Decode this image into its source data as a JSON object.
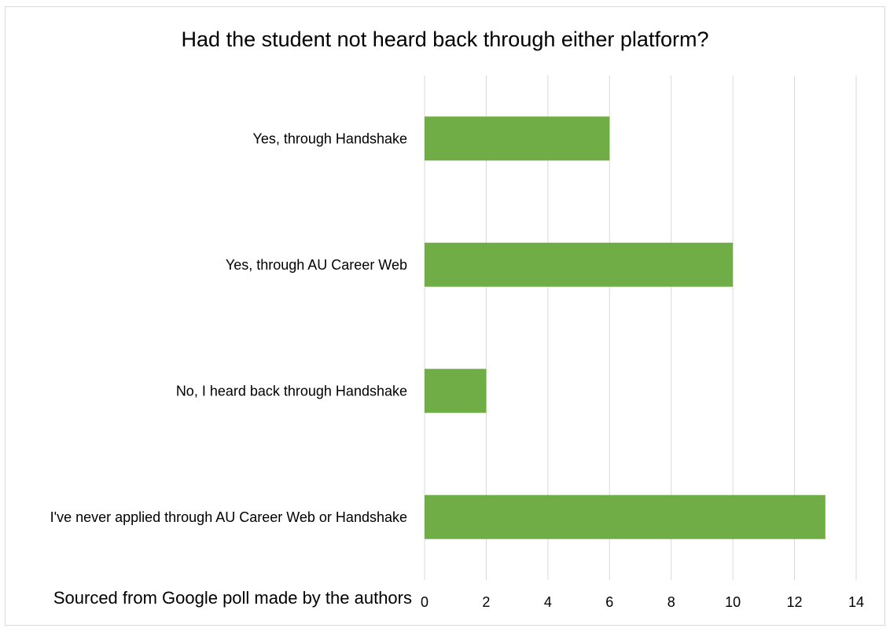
{
  "chart_data": {
    "type": "bar",
    "orientation": "horizontal",
    "title": "Had the student not heard back through either platform?",
    "source_note": "Sourced from Google poll made by the authors",
    "categories": [
      "Yes, through Handshake",
      "Yes, through AU Career Web",
      "No, I heard back through Handshake",
      "I've never applied through AU Career Web or Handshake"
    ],
    "values": [
      6,
      10,
      2,
      13
    ],
    "xlim": [
      0,
      14
    ],
    "xticks": [
      0,
      2,
      4,
      6,
      8,
      10,
      12,
      14
    ],
    "grid": "vertical",
    "legend": "none",
    "bar_color": "#70ad47"
  }
}
